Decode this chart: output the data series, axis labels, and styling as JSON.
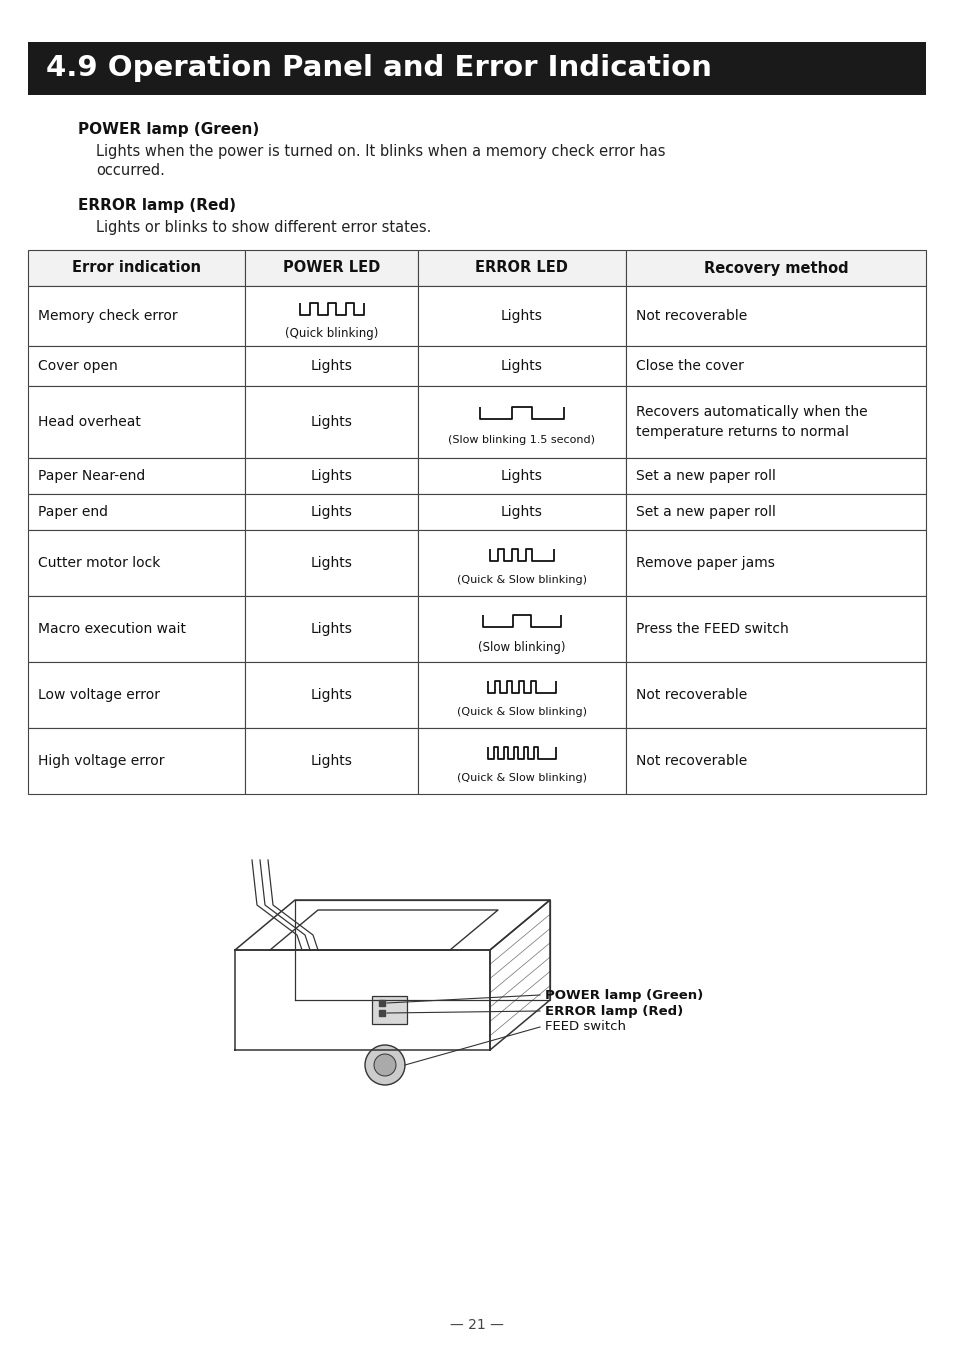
{
  "title": "4.9 Operation Panel and Error Indication",
  "title_bg": "#1a1a1a",
  "title_fg": "#ffffff",
  "power_lamp_heading": "POWER lamp (Green)",
  "power_lamp_text1": "Lights when the power is turned on. It blinks when a memory check error has",
  "power_lamp_text2": "occurred.",
  "error_lamp_heading": "ERROR lamp (Red)",
  "error_lamp_text": "Lights or blinks to show different error states.",
  "table_headers": [
    "Error indication",
    "POWER LED",
    "ERROR LED",
    "Recovery method"
  ],
  "table_rows": [
    [
      "Memory check error",
      "quick_blink",
      "Lights",
      "Not recoverable"
    ],
    [
      "Cover open",
      "Lights",
      "Lights",
      "Close the cover"
    ],
    [
      "Head overheat",
      "Lights",
      "slow_blink_15",
      "Recovers automatically when the\ntemperature returns to normal"
    ],
    [
      "Paper Near-end",
      "Lights",
      "Lights",
      "Set a new paper roll"
    ],
    [
      "Paper end",
      "Lights",
      "Lights",
      "Set a new paper roll"
    ],
    [
      "Cutter motor lock",
      "Lights",
      "quick_slow_blink",
      "Remove paper jams"
    ],
    [
      "Macro execution wait",
      "Lights",
      "slow_blink",
      "Press the FEED switch"
    ],
    [
      "Low voltage error",
      "Lights",
      "quick_slow_blink2",
      "Not recoverable"
    ],
    [
      "High voltage error",
      "Lights",
      "quick_slow_blink3",
      "Not recoverable"
    ]
  ],
  "page_number": "— 21 —",
  "background_color": "#ffffff"
}
